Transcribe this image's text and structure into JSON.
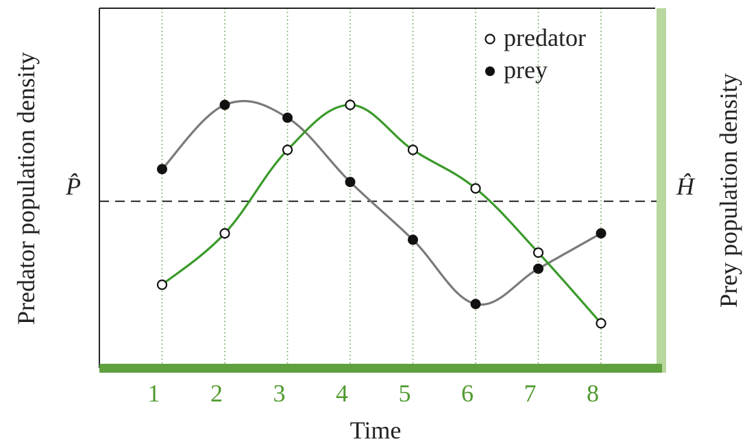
{
  "chart_data": {
    "type": "line",
    "x": [
      1,
      2,
      3,
      4,
      5,
      6,
      7,
      8
    ],
    "xlabel": "Time",
    "ylabel_left": "Predator population density",
    "ylabel_right": "Prey population density",
    "tick_labels": [
      "1",
      "2",
      "3",
      "4",
      "5",
      "6",
      "7",
      "8"
    ],
    "equilibrium": {
      "left_label": "P̂",
      "right_label": "Ĥ",
      "value": 0
    },
    "ylim": [
      -2.2,
      2.6
    ],
    "grid": "vertical dotted at each time step",
    "legend_position": "top-right",
    "series": [
      {
        "name": "predator",
        "marker": "open-circle",
        "line_color": "#3a9a2a",
        "values": [
          -1.3,
          -0.5,
          0.8,
          1.5,
          0.8,
          0.2,
          -0.8,
          -1.9
        ]
      },
      {
        "name": "prey",
        "marker": "filled-circle",
        "line_color": "#7a7a7a",
        "values": [
          0.5,
          1.5,
          1.3,
          0.3,
          -0.6,
          -1.6,
          -1.05,
          -0.5
        ]
      }
    ],
    "colors": {
      "accent_green": "#5fa03f",
      "tick_green": "#4f9a2e",
      "right_bar": "#b7d79e"
    }
  }
}
